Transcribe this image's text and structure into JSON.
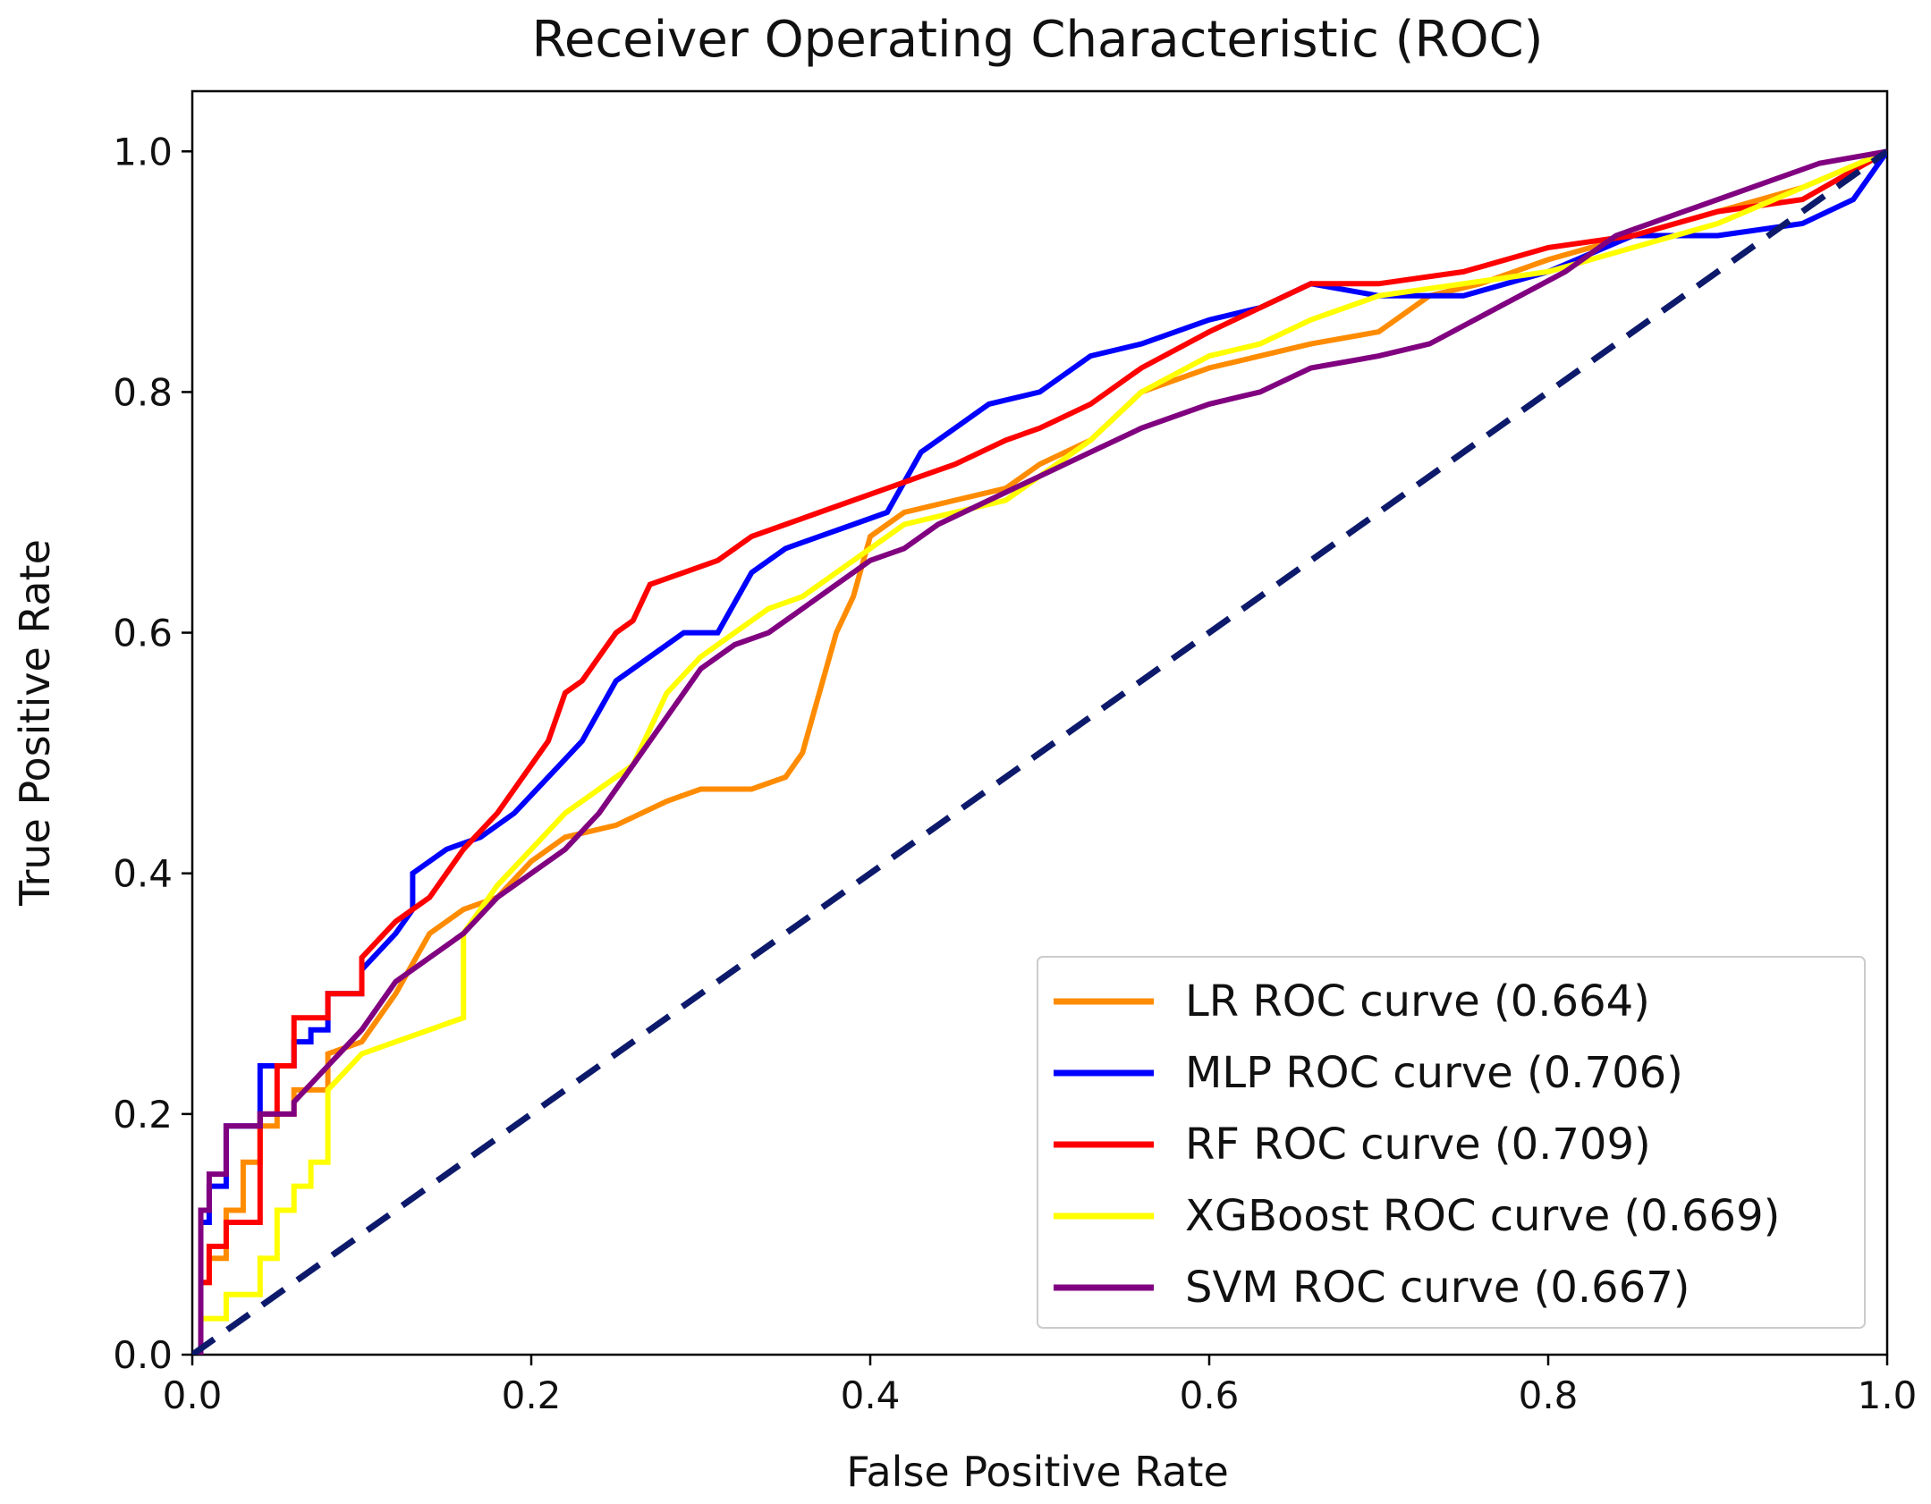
{
  "chart_data": {
    "type": "line",
    "title": "Receiver Operating Characteristic (ROC)",
    "xlabel": "False Positive Rate",
    "ylabel": "True Positive Rate",
    "xlim": [
      0.0,
      1.0
    ],
    "ylim": [
      0.0,
      1.05
    ],
    "xticks": [
      "0.0",
      "0.2",
      "0.4",
      "0.6",
      "0.8",
      "1.0"
    ],
    "yticks": [
      "0.0",
      "0.2",
      "0.4",
      "0.6",
      "0.8",
      "1.0"
    ],
    "grid": false,
    "legend_position": "lower-right",
    "reference_line": {
      "color": "#0d1a6b",
      "style": "dashed",
      "x": [
        0,
        1
      ],
      "y": [
        0,
        1
      ]
    },
    "series": [
      {
        "name": "LR ROC curve (0.664)",
        "color": "#ff8c00",
        "x": [
          0,
          0.005,
          0.005,
          0.01,
          0.01,
          0.02,
          0.02,
          0.03,
          0.03,
          0.04,
          0.04,
          0.05,
          0.05,
          0.06,
          0.06,
          0.08,
          0.08,
          0.1,
          0.12,
          0.14,
          0.16,
          0.18,
          0.2,
          0.22,
          0.25,
          0.28,
          0.3,
          0.33,
          0.35,
          0.36,
          0.37,
          0.38,
          0.39,
          0.4,
          0.42,
          0.45,
          0.48,
          0.5,
          0.53,
          0.56,
          0.6,
          0.63,
          0.66,
          0.7,
          0.73,
          0.76,
          0.8,
          0.85,
          0.9,
          0.95,
          1.0
        ],
        "y": [
          0,
          0,
          0.06,
          0.06,
          0.08,
          0.08,
          0.12,
          0.12,
          0.16,
          0.16,
          0.19,
          0.19,
          0.2,
          0.2,
          0.22,
          0.22,
          0.25,
          0.26,
          0.3,
          0.35,
          0.37,
          0.38,
          0.41,
          0.43,
          0.44,
          0.46,
          0.47,
          0.47,
          0.48,
          0.5,
          0.55,
          0.6,
          0.63,
          0.68,
          0.7,
          0.71,
          0.72,
          0.74,
          0.76,
          0.8,
          0.82,
          0.83,
          0.84,
          0.85,
          0.88,
          0.89,
          0.91,
          0.93,
          0.95,
          0.97,
          1.0
        ]
      },
      {
        "name": "MLP ROC curve (0.706)",
        "color": "#0000ff",
        "x": [
          0,
          0.005,
          0.005,
          0.01,
          0.01,
          0.02,
          0.02,
          0.04,
          0.04,
          0.06,
          0.06,
          0.07,
          0.07,
          0.08,
          0.08,
          0.1,
          0.1,
          0.12,
          0.13,
          0.13,
          0.15,
          0.17,
          0.19,
          0.21,
          0.23,
          0.25,
          0.27,
          0.29,
          0.31,
          0.33,
          0.35,
          0.37,
          0.39,
          0.41,
          0.43,
          0.45,
          0.47,
          0.5,
          0.53,
          0.56,
          0.6,
          0.63,
          0.66,
          0.7,
          0.75,
          0.8,
          0.85,
          0.9,
          0.95,
          0.98,
          1.0
        ],
        "y": [
          0,
          0,
          0.11,
          0.11,
          0.14,
          0.14,
          0.19,
          0.19,
          0.24,
          0.24,
          0.26,
          0.26,
          0.27,
          0.27,
          0.3,
          0.3,
          0.32,
          0.35,
          0.37,
          0.4,
          0.42,
          0.43,
          0.45,
          0.48,
          0.51,
          0.56,
          0.58,
          0.6,
          0.6,
          0.65,
          0.67,
          0.68,
          0.69,
          0.7,
          0.75,
          0.77,
          0.79,
          0.8,
          0.83,
          0.84,
          0.86,
          0.87,
          0.89,
          0.88,
          0.88,
          0.9,
          0.93,
          0.93,
          0.94,
          0.96,
          1.0
        ]
      },
      {
        "name": "RF ROC curve (0.709)",
        "color": "#ff0000",
        "x": [
          0,
          0.005,
          0.005,
          0.01,
          0.01,
          0.02,
          0.02,
          0.04,
          0.04,
          0.05,
          0.05,
          0.06,
          0.06,
          0.08,
          0.08,
          0.1,
          0.1,
          0.12,
          0.14,
          0.16,
          0.18,
          0.2,
          0.21,
          0.22,
          0.23,
          0.24,
          0.25,
          0.26,
          0.27,
          0.29,
          0.31,
          0.33,
          0.35,
          0.37,
          0.39,
          0.41,
          0.43,
          0.45,
          0.48,
          0.5,
          0.53,
          0.56,
          0.6,
          0.63,
          0.66,
          0.7,
          0.75,
          0.8,
          0.85,
          0.9,
          0.95,
          1.0
        ],
        "y": [
          0,
          0,
          0.06,
          0.06,
          0.09,
          0.09,
          0.11,
          0.11,
          0.2,
          0.2,
          0.24,
          0.24,
          0.28,
          0.28,
          0.3,
          0.3,
          0.33,
          0.36,
          0.38,
          0.42,
          0.45,
          0.49,
          0.51,
          0.55,
          0.56,
          0.58,
          0.6,
          0.61,
          0.64,
          0.65,
          0.66,
          0.68,
          0.69,
          0.7,
          0.71,
          0.72,
          0.73,
          0.74,
          0.76,
          0.77,
          0.79,
          0.82,
          0.85,
          0.87,
          0.89,
          0.89,
          0.9,
          0.92,
          0.93,
          0.95,
          0.96,
          1.0
        ]
      },
      {
        "name": "XGBoost ROC curve (0.669)",
        "color": "#ffff00",
        "x": [
          0,
          0.005,
          0.005,
          0.02,
          0.02,
          0.04,
          0.04,
          0.05,
          0.05,
          0.06,
          0.06,
          0.07,
          0.07,
          0.08,
          0.08,
          0.1,
          0.12,
          0.14,
          0.16,
          0.16,
          0.18,
          0.2,
          0.22,
          0.24,
          0.26,
          0.28,
          0.3,
          0.32,
          0.34,
          0.36,
          0.38,
          0.4,
          0.42,
          0.45,
          0.48,
          0.5,
          0.53,
          0.56,
          0.6,
          0.63,
          0.66,
          0.7,
          0.75,
          0.8,
          0.85,
          0.9,
          0.95,
          1.0
        ],
        "y": [
          0,
          0,
          0.03,
          0.03,
          0.05,
          0.05,
          0.08,
          0.08,
          0.12,
          0.12,
          0.14,
          0.14,
          0.16,
          0.16,
          0.22,
          0.25,
          0.26,
          0.27,
          0.28,
          0.35,
          0.39,
          0.42,
          0.45,
          0.47,
          0.49,
          0.55,
          0.58,
          0.6,
          0.62,
          0.63,
          0.65,
          0.67,
          0.69,
          0.7,
          0.71,
          0.73,
          0.76,
          0.8,
          0.83,
          0.84,
          0.86,
          0.88,
          0.89,
          0.9,
          0.92,
          0.94,
          0.97,
          1.0
        ]
      },
      {
        "name": "SVM ROC curve (0.667)",
        "color": "#800080",
        "x": [
          0,
          0.005,
          0.005,
          0.01,
          0.01,
          0.02,
          0.02,
          0.04,
          0.04,
          0.06,
          0.06,
          0.08,
          0.1,
          0.12,
          0.14,
          0.16,
          0.18,
          0.2,
          0.22,
          0.24,
          0.26,
          0.28,
          0.3,
          0.32,
          0.34,
          0.36,
          0.38,
          0.4,
          0.42,
          0.44,
          0.47,
          0.5,
          0.53,
          0.56,
          0.6,
          0.63,
          0.66,
          0.7,
          0.73,
          0.77,
          0.81,
          0.84,
          0.88,
          0.92,
          0.96,
          1.0
        ],
        "y": [
          0,
          0,
          0.12,
          0.12,
          0.15,
          0.15,
          0.19,
          0.19,
          0.2,
          0.2,
          0.21,
          0.24,
          0.27,
          0.31,
          0.33,
          0.35,
          0.38,
          0.4,
          0.42,
          0.45,
          0.49,
          0.53,
          0.57,
          0.59,
          0.6,
          0.62,
          0.64,
          0.66,
          0.67,
          0.69,
          0.71,
          0.73,
          0.75,
          0.77,
          0.79,
          0.8,
          0.82,
          0.83,
          0.84,
          0.87,
          0.9,
          0.93,
          0.95,
          0.97,
          0.99,
          1.0
        ]
      }
    ]
  }
}
